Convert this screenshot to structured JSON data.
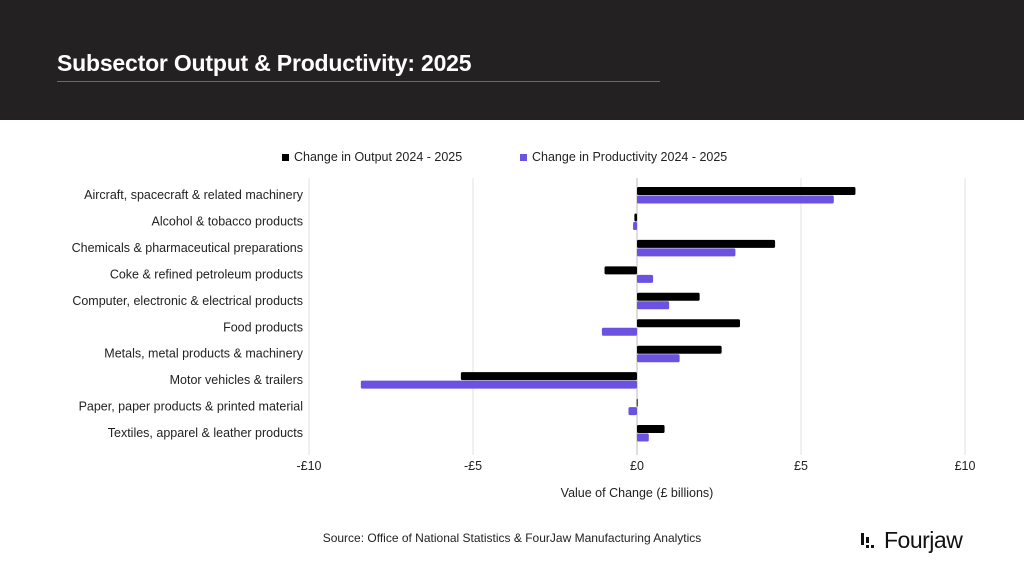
{
  "header": {
    "title": "Subsector Output & Productivity: 2025"
  },
  "footer": {
    "source": "Source: Office of National Statistics & FourJaw Manufacturing Analytics",
    "logo_text": "Fourjaw"
  },
  "colors": {
    "output": "#000000",
    "productivity": "#6b52e0",
    "header_bg": "#232122"
  },
  "chart_data": {
    "type": "bar",
    "orientation": "horizontal",
    "categories": [
      "Aircraft, spacecraft & related machinery",
      "Alcohol & tobacco products",
      "Chemicals & pharmaceutical preparations",
      "Coke & refined petroleum products",
      "Computer, electronic & electrical products",
      "Food products",
      "Metals, metal products & machinery",
      "Motor vehicles & trailers",
      "Paper, paper products & printed material",
      "Textiles, apparel & leather products"
    ],
    "series": [
      {
        "name": "Change in Output 2024 - 2025",
        "color": "#000000",
        "values": [
          6.66,
          -0.08,
          4.21,
          -0.99,
          1.91,
          3.14,
          2.58,
          -5.37,
          -0.01,
          0.84
        ]
      },
      {
        "name": "Change in Productivity 2024 - 2025",
        "color": "#6b52e0",
        "values": [
          6.0,
          -0.12,
          3.0,
          0.49,
          0.98,
          -1.07,
          1.3,
          -8.42,
          -0.26,
          0.36
        ]
      }
    ],
    "xlabel": "Value of Change (£ billions)",
    "xlim": [
      -10,
      10
    ],
    "xticks": [
      -10,
      -5,
      0,
      5,
      10
    ],
    "xtick_labels": [
      "-£10",
      "-£5",
      "£0",
      "£5",
      "£10"
    ],
    "grid": true,
    "legend": "top"
  }
}
